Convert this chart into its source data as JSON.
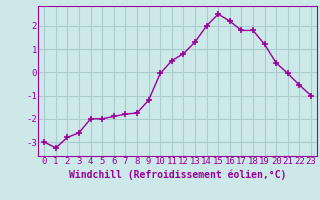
{
  "x": [
    0,
    1,
    2,
    3,
    4,
    5,
    6,
    7,
    8,
    9,
    10,
    11,
    12,
    13,
    14,
    15,
    16,
    17,
    18,
    19,
    20,
    21,
    22,
    23
  ],
  "y": [
    -3.0,
    -3.25,
    -2.8,
    -2.6,
    -2.0,
    -2.0,
    -1.9,
    -1.8,
    -1.75,
    -1.2,
    -0.05,
    0.5,
    0.8,
    1.3,
    2.0,
    2.5,
    2.2,
    1.8,
    1.8,
    1.2,
    0.4,
    -0.05,
    -0.55,
    -1.0
  ],
  "line_color": "#990099",
  "marker": "+",
  "marker_size": 4,
  "marker_lw": 1.2,
  "line_width": 1.0,
  "bg_color": "#cce8e8",
  "grid_color": "#aacccc",
  "xlabel": "Windchill (Refroidissement éolien,°C)",
  "ylabel_ticks": [
    "-3",
    "-2",
    "-1",
    "0",
    "1",
    "2"
  ],
  "yticks": [
    -3,
    -2,
    -1,
    0,
    1,
    2
  ],
  "xlim": [
    -0.5,
    23.5
  ],
  "ylim": [
    -3.6,
    2.85
  ],
  "tick_fontsize": 6.5,
  "xlabel_fontsize": 7.0
}
